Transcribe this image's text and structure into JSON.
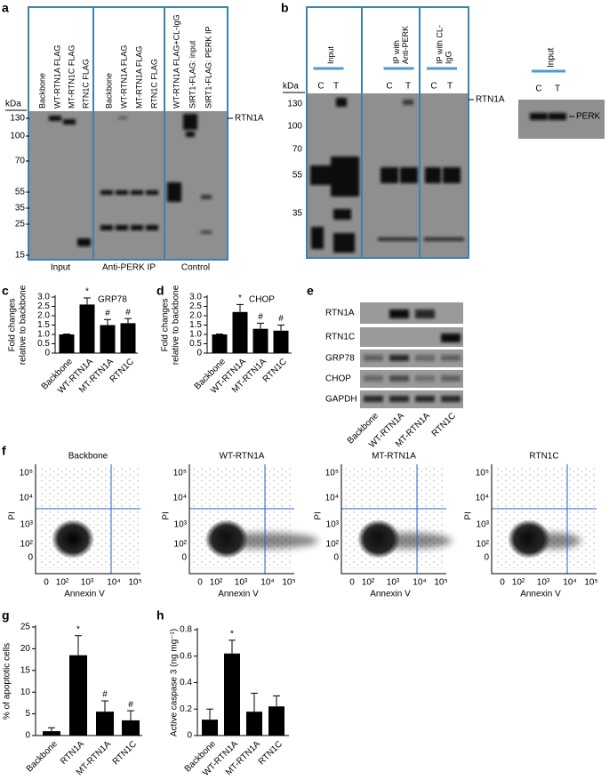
{
  "blot_a": {
    "label": "a",
    "unit": "kDa",
    "markers": [
      130,
      100,
      70,
      55,
      35,
      25,
      15
    ],
    "lanes": [
      "Backbone",
      "WT-RTN1A FLAG",
      "MT-RTN1C FLAG",
      "RTN1C FLAG",
      "Backbone",
      "WT-RTN1A FLAG",
      "MT-RTN1A FLAG",
      "RTN1C FLAG",
      "WT-RTN1A FLAG+CL-IgG",
      "SIRT1-FLAG: input",
      "SIRT1-FLAG: PERK IP"
    ],
    "groups": [
      "Input",
      "Anti-PERK IP",
      "Control"
    ],
    "band_label": "RTN1A"
  },
  "blot_b": {
    "label": "b",
    "unit": "kDa",
    "markers": [
      130,
      100,
      70,
      55,
      35
    ],
    "groups": [
      [
        "Input"
      ],
      [
        "IP with",
        "Anti-PERK"
      ],
      [
        "IP with CL-",
        "IgG"
      ]
    ],
    "lanes": [
      "C",
      "T",
      "C",
      "T",
      "C",
      "T"
    ],
    "band_label": "RTN1A",
    "inset": {
      "group": "Input",
      "lanes": [
        "C",
        "T"
      ],
      "band_label": "PERK"
    }
  },
  "blot_e": {
    "label": "e",
    "rows": [
      "RTN1A",
      "RTN1C",
      "GRP78",
      "CHOP",
      "GAPDH"
    ],
    "lanes": [
      "Backbone",
      "WT-RTN1A",
      "MT-RTN1A",
      "RTN1C"
    ]
  },
  "flow": {
    "label": "f",
    "plots": [
      "Backbone",
      "WT-RTN1A",
      "MT-RTN1A",
      "RTN1C"
    ],
    "x_label": "Annexin V",
    "y_label": "PI",
    "xticks": [
      "0",
      "10²",
      "10³",
      "10⁴",
      "10⁵"
    ],
    "yticks": [
      "0",
      "10²",
      "10³",
      "10⁴",
      "10⁵"
    ]
  },
  "chart_data": [
    {
      "type": "bar",
      "label": "c",
      "title": "GRP78",
      "y_label": [
        "Fold changes",
        "relative to backbone"
      ],
      "categories": [
        "Backbone",
        "WT-RTN1A",
        "MT-RTN1A",
        "RTN1C"
      ],
      "values": [
        1.0,
        2.6,
        1.5,
        1.6
      ],
      "errors": [
        0.02,
        0.35,
        0.3,
        0.25
      ],
      "annotations": [
        null,
        "*",
        "#",
        "#"
      ],
      "color": "#000000",
      "ylim": [
        0,
        3
      ],
      "yticks": [
        0,
        0.5,
        {
          "value": 1,
          "label": "1.0"
        },
        1.5,
        {
          "value": 2,
          "label": "2.0"
        },
        2.5,
        {
          "value": 3,
          "label": "3.0"
        }
      ]
    },
    {
      "type": "bar",
      "label": "d",
      "title": "CHOP",
      "y_label": [
        "Fold changes",
        "relative to backbone"
      ],
      "categories": [
        "Backbone",
        "WT-RTN1A",
        "MT-RTN1A",
        "RTN1C"
      ],
      "values": [
        1.0,
        2.2,
        1.3,
        1.2
      ],
      "errors": [
        0.02,
        0.4,
        0.3,
        0.3
      ],
      "annotations": [
        null,
        "*",
        "#",
        "#"
      ],
      "color": "#000000",
      "ylim": [
        0,
        3
      ],
      "yticks": [
        0,
        0.5,
        {
          "value": 1,
          "label": "1.0"
        },
        1.5,
        {
          "value": 2,
          "label": "2.0"
        },
        2.5,
        {
          "value": 3,
          "label": "3.0"
        }
      ]
    },
    {
      "type": "bar",
      "label": "g",
      "y_label": [
        "% of apoptotic cells"
      ],
      "categories": [
        "Backbone",
        "RTN1A",
        "MT-RTN1A",
        "RTN1C"
      ],
      "values": [
        1,
        18.5,
        5.5,
        3.5
      ],
      "errors": [
        0.8,
        4.5,
        2.5,
        2.2
      ],
      "annotations": [
        null,
        "*",
        "#",
        "#"
      ],
      "color": "#000000",
      "ylim": [
        0,
        25
      ],
      "yticks": [
        0,
        5,
        10,
        15,
        20,
        25
      ]
    },
    {
      "type": "bar",
      "label": "h",
      "y_label": [
        "Active caspase 3 (ng mg⁻¹)"
      ],
      "categories": [
        "Backbone",
        "WT-RTN1A",
        "MT-RTN1A",
        "RTN1C"
      ],
      "values": [
        0.12,
        0.62,
        0.18,
        0.22
      ],
      "errors": [
        0.08,
        0.1,
        0.14,
        0.08
      ],
      "annotations": [
        null,
        "*",
        null,
        null
      ],
      "color": "#000000",
      "ylim": [
        0,
        0.8
      ],
      "yticks": [
        0,
        0.2,
        0.4,
        0.6,
        0.8
      ]
    }
  ]
}
